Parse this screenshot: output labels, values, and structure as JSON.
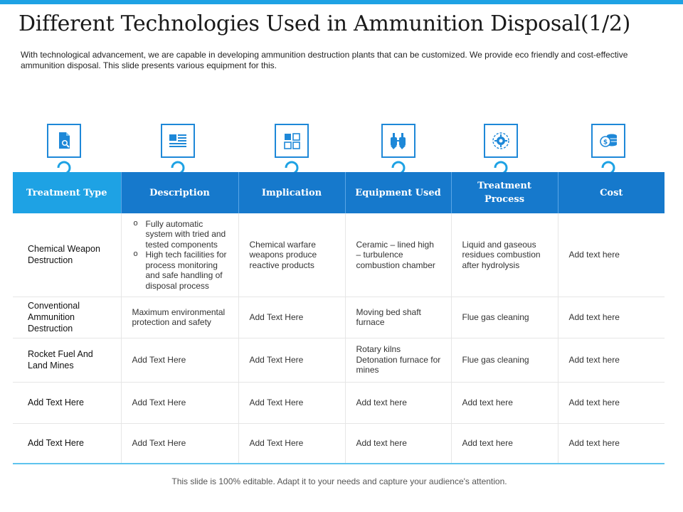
{
  "title": "Different Technologies Used in Ammunition Disposal(1/2)",
  "intro": "With technological advancement, we are capable in developing ammunition destruction plants that can be customized. We provide eco friendly and cost-effective ammunition disposal. This slide presents various equipment for this.",
  "colors": {
    "accent_light": "#1ea2e4",
    "accent_dark": "#1679cc",
    "icon_border": "#1e88d8"
  },
  "icons": [
    "document-search-icon",
    "article-layout-icon",
    "grid-tiles-icon",
    "industrial-tanks-icon",
    "gear-process-icon",
    "coin-stack-icon"
  ],
  "table": {
    "headers": [
      "Treatment Type",
      "Description",
      "Implication",
      "Equipment Used",
      "Treatment Process",
      "Cost"
    ],
    "rows": [
      {
        "type": "Chemical Weapon Destruction",
        "description_bullets": [
          "Fully automatic system with tried and tested components",
          "High tech facilities for process monitoring and safe handling of disposal process"
        ],
        "implication": "Chemical warfare weapons produce reactive products",
        "equipment": "Ceramic – lined high – turbulence combustion chamber",
        "process": "Liquid and gaseous residues combustion after hydrolysis",
        "cost": "Add text here"
      },
      {
        "type": "Conventional Ammunition Destruction",
        "description": "Maximum environmental protection and safety",
        "implication": "Add Text Here",
        "equipment": "Moving bed shaft furnace",
        "process": "Flue gas cleaning",
        "cost": "Add text here"
      },
      {
        "type": "Rocket Fuel And Land Mines",
        "description": "Add Text Here",
        "implication": "Add Text Here",
        "equipment": "Rotary kilns Detonation furnace for mines",
        "process": "Flue gas cleaning",
        "cost": "Add text here"
      },
      {
        "type": "Add Text Here",
        "description": "Add Text Here",
        "implication": "Add Text Here",
        "equipment": "Add text here",
        "process": "Add text here",
        "cost": "Add text here"
      },
      {
        "type": "Add Text Here",
        "description": "Add Text Here",
        "implication": "Add Text Here",
        "equipment": "Add text here",
        "process": "Add text here",
        "cost": "Add text here"
      }
    ]
  },
  "footer": "This slide is 100% editable. Adapt it to your needs and capture your audience's attention."
}
